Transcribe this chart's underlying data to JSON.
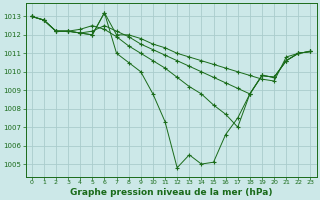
{
  "title": "Graphe pression niveau de la mer (hPa)",
  "bg_color": "#cce8e8",
  "grid_color": "#aacccc",
  "line_color": "#1a6b1a",
  "xlim": [
    -0.5,
    23.5
  ],
  "ylim": [
    1004.3,
    1013.7
  ],
  "yticks": [
    1005,
    1006,
    1007,
    1008,
    1009,
    1010,
    1011,
    1012,
    1013
  ],
  "xticks": [
    0,
    1,
    2,
    3,
    4,
    5,
    6,
    7,
    8,
    9,
    10,
    11,
    12,
    13,
    14,
    15,
    16,
    17,
    18,
    19,
    20,
    21,
    22,
    23
  ],
  "series": [
    [
      1013.0,
      1012.8,
      1012.2,
      1012.2,
      1012.1,
      1012.0,
      1013.2,
      1012.0,
      1012.0,
      1011.8,
      1011.5,
      1011.3,
      1011.0,
      1010.8,
      1010.6,
      1010.4,
      1010.2,
      1010.0,
      1009.8,
      1009.6,
      1009.5,
      1010.8,
      1011.0,
      1011.1
    ],
    [
      1013.0,
      1012.8,
      1012.2,
      1012.2,
      1012.1,
      1012.2,
      1012.5,
      1012.2,
      1011.9,
      1011.5,
      1011.2,
      1010.9,
      1010.6,
      1010.3,
      1010.0,
      1009.7,
      1009.4,
      1009.1,
      1008.8,
      1009.8,
      1009.7,
      1010.6,
      1011.0,
      1011.1
    ],
    [
      1013.0,
      1012.8,
      1012.2,
      1012.2,
      1012.3,
      1012.5,
      1012.3,
      1011.9,
      1011.4,
      1011.0,
      1010.6,
      1010.2,
      1009.7,
      1009.2,
      1008.8,
      1008.2,
      1007.7,
      1007.0,
      1008.8,
      1009.8,
      1009.7,
      1010.6,
      1011.0,
      1011.1
    ],
    [
      1013.0,
      1012.8,
      1012.2,
      1012.2,
      1012.1,
      1012.0,
      1013.2,
      1011.0,
      1010.5,
      1010.0,
      1008.8,
      1007.3,
      1004.8,
      1005.5,
      1005.0,
      1005.1,
      1006.6,
      1007.5,
      1008.8,
      1009.8,
      1009.7,
      1010.6,
      1011.0,
      1011.1
    ]
  ]
}
